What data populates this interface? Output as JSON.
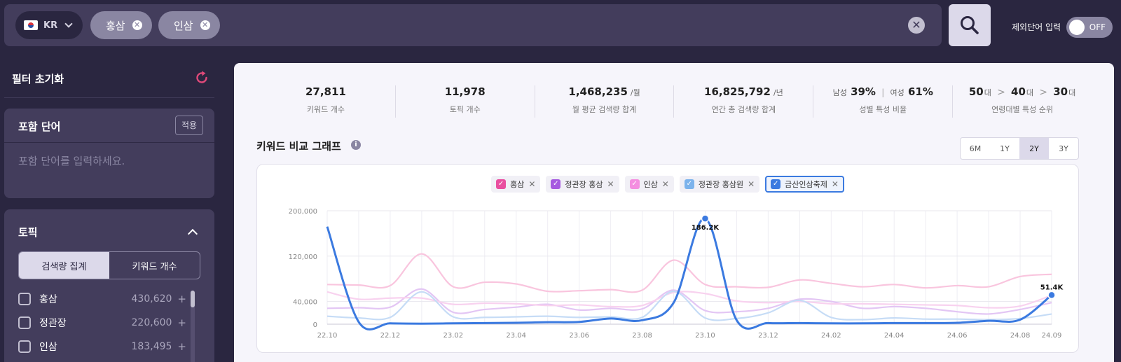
{
  "search": {
    "country_code": "KR",
    "chips": [
      "홍삼",
      "인삼"
    ],
    "clear_symbol": "✕"
  },
  "exclude": {
    "label": "제외단어 입력",
    "toggle_state": "OFF"
  },
  "sidebar": {
    "reset_label": "필터 초기화",
    "include": {
      "title": "포함 단어",
      "apply_label": "적용",
      "placeholder": "포함 단어를 입력하세요."
    },
    "topic": {
      "title": "토픽",
      "segments": [
        "검색량 집계",
        "키워드 개수"
      ],
      "active_segment": 0,
      "items": [
        {
          "name": "홍삼",
          "count": "430,620"
        },
        {
          "name": "정관장",
          "count": "220,600"
        },
        {
          "name": "인삼",
          "count": "183,495"
        }
      ]
    }
  },
  "stats": {
    "keyword_count": {
      "value": "27,811",
      "label": "키워드 개수"
    },
    "topic_count": {
      "value": "11,978",
      "label": "토픽 개수"
    },
    "monthly": {
      "value": "1,468,235",
      "unit": "/월",
      "label": "월 평균 검색량 합계"
    },
    "yearly": {
      "value": "16,825,792",
      "unit": "/년",
      "label": "연간 총 검색량 합계"
    },
    "gender": {
      "male_label": "남성",
      "male_value": "39%",
      "sep": "|",
      "female_label": "여성",
      "female_value": "61%",
      "label": "성별 특성 비율"
    },
    "age": {
      "first": "50",
      "second": "40",
      "third": "30",
      "unit": "대",
      "arrow": ">",
      "label": "연령대별 특성 순위"
    }
  },
  "graph": {
    "title": "키워드 비교 그래프",
    "info_symbol": "i",
    "periods": [
      "6M",
      "1Y",
      "2Y",
      "3Y"
    ],
    "active_period": "2Y"
  },
  "chart_data": {
    "type": "line",
    "x": [
      "22.10",
      "22.11",
      "22.12",
      "23.01",
      "23.02",
      "23.03",
      "23.04",
      "23.05",
      "23.06",
      "23.07",
      "23.08",
      "23.09",
      "23.10",
      "23.11",
      "23.12",
      "23.01",
      "24.02",
      "24.03",
      "24.04",
      "24.05",
      "24.06",
      "24.07",
      "24.08",
      "24.09"
    ],
    "x_ticks": [
      "22.10",
      "22.12",
      "23.02",
      "23.04",
      "23.06",
      "23.08",
      "23.10",
      "23.12",
      "24.02",
      "24.04",
      "24.06",
      "24.08",
      "24.09"
    ],
    "y_ticks": [
      "200,000",
      "120,000",
      "40,000",
      "0"
    ],
    "ylim": [
      0,
      200000
    ],
    "grid": true,
    "series": [
      {
        "name": "홍삼",
        "color": "#f9c5de",
        "values": [
          70000,
          69000,
          68000,
          124000,
          66000,
          74000,
          71000,
          58000,
          59000,
          61000,
          60000,
          113000,
          70000,
          66000,
          65000,
          78000,
          72000,
          66000,
          70000,
          64000,
          68000,
          66000,
          84000,
          88000
        ]
      },
      {
        "name": "정관장 홍삼",
        "color": "#e3c6f4",
        "values": [
          28000,
          29000,
          30000,
          62000,
          21000,
          26000,
          30000,
          35000,
          25000,
          28000,
          27000,
          60000,
          24000,
          22000,
          28000,
          44000,
          40000,
          28000,
          31000,
          28000,
          22000,
          18000,
          26000,
          38000
        ]
      },
      {
        "name": "인삼",
        "color": "#f8d2ef",
        "values": [
          57000,
          44000,
          46000,
          46000,
          35000,
          37000,
          36000,
          33000,
          34000,
          31000,
          33000,
          56000,
          54000,
          41000,
          38000,
          40000,
          36000,
          36000,
          35000,
          34000,
          33000,
          29000,
          32000,
          51000
        ]
      },
      {
        "name": "정관장 홍삼원",
        "color": "#c6dcf6",
        "values": [
          14000,
          11000,
          12000,
          57000,
          13000,
          12000,
          13000,
          14000,
          12000,
          13000,
          12000,
          58000,
          11000,
          10000,
          20000,
          42000,
          12000,
          8000,
          11000,
          9000,
          9000,
          8000,
          10000,
          18000
        ]
      },
      {
        "name": "금산인삼축제",
        "color": "#3b7ae0",
        "values": [
          172000,
          4000,
          1500,
          1000,
          1500,
          2000,
          2500,
          3500,
          4000,
          10000,
          7000,
          38000,
          186200,
          7000,
          2000,
          2000,
          1500,
          1500,
          2000,
          2000,
          2500,
          6000,
          8000,
          51400
        ]
      }
    ],
    "annotations": [
      {
        "series": "금산인삼축제",
        "x": "23.10",
        "label": "186.2K"
      },
      {
        "series": "금산인삼축제",
        "x": "24.09",
        "label": "51.4K"
      }
    ]
  }
}
